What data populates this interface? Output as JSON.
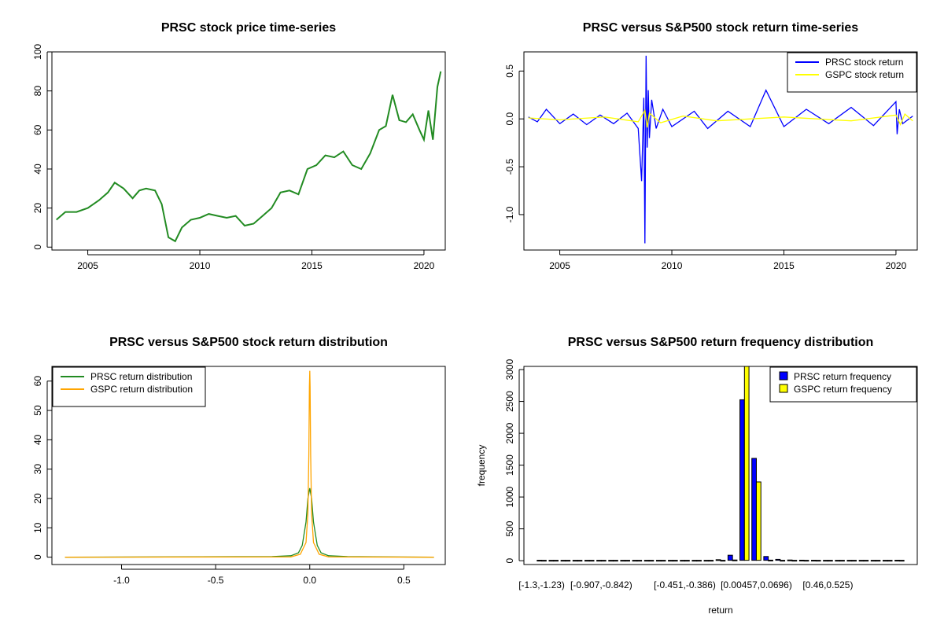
{
  "chart_data": [
    {
      "type": "line",
      "title": "PRSC stock price time-series",
      "xlabel": "",
      "ylabel": "",
      "xlim": [
        2003.4,
        2020.95
      ],
      "ylim": [
        -1.5,
        100
      ],
      "xticks": [
        2005,
        2010,
        2015,
        2020
      ],
      "xtick_labels": [
        "2005",
        "2010",
        "2015",
        "2020"
      ],
      "yticks": [
        0,
        20,
        40,
        60,
        80,
        100
      ],
      "ytick_labels": [
        "0",
        "20",
        "40",
        "60",
        "80",
        "100"
      ],
      "grid": false,
      "series": [
        {
          "color": "#228B22",
          "x": [
            2003.6,
            2004.0,
            2004.5,
            2005.0,
            2005.5,
            2005.9,
            2006.2,
            2006.6,
            2007.0,
            2007.3,
            2007.6,
            2008.0,
            2008.3,
            2008.6,
            2008.9,
            2009.2,
            2009.6,
            2010.0,
            2010.4,
            2010.8,
            2011.2,
            2011.6,
            2012.0,
            2012.4,
            2012.8,
            2013.2,
            2013.6,
            2014.0,
            2014.4,
            2014.8,
            2015.2,
            2015.6,
            2016.0,
            2016.4,
            2016.8,
            2017.2,
            2017.6,
            2018.0,
            2018.3,
            2018.6,
            2018.9,
            2019.2,
            2019.5,
            2019.8,
            2020.0,
            2020.2,
            2020.4,
            2020.6,
            2020.75
          ],
          "y": [
            14,
            18,
            18,
            20,
            24,
            28,
            33,
            30,
            25,
            29,
            30,
            29,
            22,
            5,
            3,
            10,
            14,
            15,
            17,
            16,
            15,
            16,
            11,
            12,
            16,
            20,
            28,
            29,
            27,
            40,
            42,
            47,
            46,
            49,
            42,
            40,
            48,
            60,
            62,
            78,
            65,
            64,
            68,
            60,
            55,
            70,
            55,
            82,
            90
          ]
        }
      ]
    },
    {
      "type": "line",
      "title": "PRSC versus S&P500 stock return time-series",
      "xlabel": "",
      "ylabel": "",
      "xlim": [
        2003.4,
        2020.95
      ],
      "ylim": [
        -1.37,
        0.7
      ],
      "xticks": [
        2005,
        2010,
        2015,
        2020
      ],
      "xtick_labels": [
        "2005",
        "2010",
        "2015",
        "2020"
      ],
      "yticks": [
        -1.0,
        -0.5,
        0.0,
        0.5
      ],
      "ytick_labels": [
        "-1.0",
        "-0.5",
        "0.0",
        "0.5"
      ],
      "grid": false,
      "legend_position": "top-right",
      "series": [
        {
          "name": "PRSC stock return",
          "color": "#0000FF",
          "x": [
            2003.6,
            2004.0,
            2004.4,
            2005.0,
            2005.6,
            2006.2,
            2006.8,
            2007.4,
            2008.0,
            2008.5,
            2008.65,
            2008.75,
            2008.8,
            2008.85,
            2008.9,
            2008.95,
            2009.0,
            2009.1,
            2009.3,
            2009.6,
            2010.0,
            2011.0,
            2011.6,
            2012.5,
            2013.5,
            2014.2,
            2015.0,
            2016.0,
            2017.0,
            2018.0,
            2019.0,
            2020.0,
            2020.05,
            2020.15,
            2020.3,
            2020.75
          ],
          "y": [
            0.02,
            -0.03,
            0.1,
            -0.05,
            0.05,
            -0.06,
            0.04,
            -0.05,
            0.06,
            -0.1,
            -0.65,
            0.22,
            -1.3,
            0.66,
            -0.3,
            0.3,
            -0.2,
            0.2,
            -0.1,
            0.1,
            -0.08,
            0.08,
            -0.1,
            0.08,
            -0.08,
            0.3,
            -0.08,
            0.1,
            -0.05,
            0.12,
            -0.07,
            0.18,
            -0.16,
            0.1,
            -0.05,
            0.03
          ]
        },
        {
          "name": "GSPC stock return",
          "color": "#FFFF00",
          "x": [
            2003.6,
            2005.0,
            2007.0,
            2008.5,
            2008.8,
            2008.9,
            2009.0,
            2009.5,
            2010.5,
            2012.0,
            2015.0,
            2018.0,
            2020.0,
            2020.2,
            2020.4,
            2020.75
          ],
          "y": [
            0.01,
            -0.01,
            0.02,
            -0.03,
            0.09,
            -0.09,
            0.06,
            -0.04,
            0.03,
            -0.02,
            0.02,
            -0.02,
            0.04,
            -0.06,
            0.05,
            -0.02
          ]
        }
      ]
    },
    {
      "type": "line",
      "title": "PRSC versus S&P500 stock return distribution",
      "xlabel": "",
      "ylabel": "",
      "xlim": [
        -1.37,
        0.72
      ],
      "ylim": [
        -2.5,
        65
      ],
      "xticks": [
        -1.0,
        -0.5,
        0.0,
        0.5
      ],
      "xtick_labels": [
        "-1.0",
        "-0.5",
        "0.0",
        "0.5"
      ],
      "yticks": [
        0,
        10,
        20,
        30,
        40,
        50,
        60
      ],
      "ytick_labels": [
        "0",
        "10",
        "20",
        "30",
        "40",
        "50",
        "60"
      ],
      "grid": false,
      "legend_position": "top-left",
      "series": [
        {
          "name": "PRSC return distribution",
          "color": "#228B22",
          "x": [
            -1.3,
            -0.2,
            -0.1,
            -0.06,
            -0.04,
            -0.02,
            -0.01,
            0.0,
            0.01,
            0.02,
            0.04,
            0.06,
            0.1,
            0.2,
            0.66
          ],
          "y": [
            0,
            0.2,
            0.5,
            1.5,
            4,
            12,
            20,
            23.5,
            20,
            12,
            4,
            1.5,
            0.5,
            0.2,
            0
          ]
        },
        {
          "name": "GSPC return distribution",
          "color": "#FFA500",
          "x": [
            -1.3,
            -0.1,
            -0.05,
            -0.02,
            -0.01,
            -0.005,
            -0.002,
            0.0,
            0.002,
            0.005,
            0.01,
            0.02,
            0.05,
            0.1,
            0.66
          ],
          "y": [
            0,
            0.1,
            1,
            5,
            15,
            35,
            58,
            63.5,
            58,
            35,
            15,
            5,
            1,
            0.1,
            0
          ]
        }
      ]
    },
    {
      "type": "bar",
      "title": "PRSC versus S&P500 return frequency distribution",
      "xlabel": "return",
      "ylabel": "frequency",
      "ylim": [
        -60,
        3050
      ],
      "yticks": [
        0,
        500,
        1000,
        1500,
        2000,
        2500,
        3000
      ],
      "ytick_labels": [
        "0",
        "500",
        "1000",
        "1500",
        "2000",
        "2500",
        "3000"
      ],
      "legend_position": "top-right",
      "categories": [
        "[-1.3,-1.23)",
        "",
        "",
        "",
        "",
        "[-0.907,-0.842)",
        "",
        "",
        "",
        "",
        "",
        "",
        "[-0.451,-0.386)",
        "",
        "",
        "",
        "",
        "",
        "[0.00457,0.0696)",
        "",
        "",
        "",
        "",
        "",
        "[0.46,0.525)",
        "",
        "",
        "",
        "",
        "",
        ""
      ],
      "series": [
        {
          "name": "PRSC return frequency",
          "color": "#0000FF",
          "values": [
            1,
            0,
            0,
            0,
            0,
            0,
            0,
            0,
            0,
            0,
            0,
            0,
            0,
            0,
            0,
            10,
            80,
            2520,
            1600,
            60,
            15,
            5,
            2,
            1,
            0,
            0,
            0,
            0,
            0,
            0,
            1
          ]
        },
        {
          "name": "GSPC return frequency",
          "color": "#FFFF00",
          "values": [
            0,
            0,
            0,
            0,
            0,
            0,
            0,
            0,
            0,
            0,
            0,
            0,
            0,
            0,
            0,
            0,
            5,
            3050,
            1230,
            3,
            0,
            0,
            0,
            0,
            0,
            0,
            0,
            0,
            0,
            0,
            0
          ]
        }
      ]
    }
  ]
}
